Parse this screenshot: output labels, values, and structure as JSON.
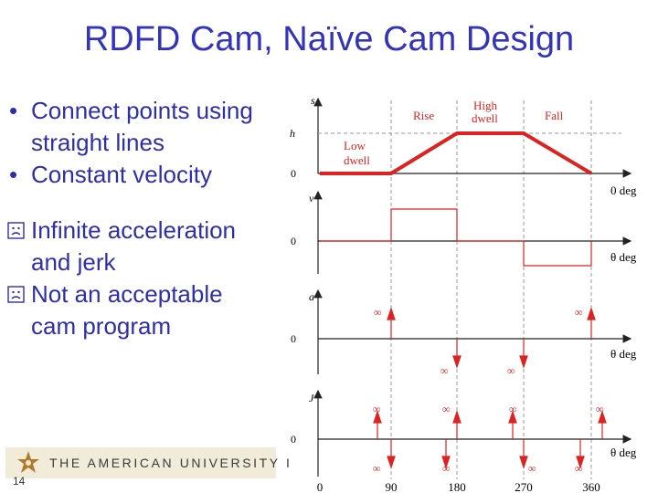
{
  "slide": {
    "title": "RDFD Cam, Naïve Cam Design",
    "page_number": "14"
  },
  "bullets": [
    {
      "type": "bullet",
      "text_line1": "Connect points using",
      "text_line2": "straight lines"
    },
    {
      "type": "bullet",
      "text_line1": "Constant velocity"
    },
    {
      "type": "frown",
      "text_line1": "Infinite acceleration",
      "text_line2": "and jerk"
    },
    {
      "type": "frown",
      "text_line1": "Not an acceptable",
      "text_line2": "cam program"
    }
  ],
  "logo": {
    "text": "THE AMERICAN UNIVERSITY I"
  },
  "diagram": {
    "colors": {
      "accent": "#dd2222",
      "axis": "#222222",
      "dash": "#999999"
    },
    "panels": [
      {
        "axis_label": "s",
        "h_label": "h",
        "zero_label": "0",
        "theta_label": "0  deg"
      },
      {
        "axis_label": "v",
        "zero_label": "0",
        "theta_label": "θ  deg"
      },
      {
        "axis_label": "a",
        "zero_label": "0",
        "theta_label": "θ  deg"
      },
      {
        "axis_label": "J",
        "zero_label": "0",
        "theta_label": "θ  deg"
      }
    ],
    "segment_labels": {
      "rise": "Rise",
      "high_dwell_line1": "High",
      "high_dwell_line2": "dwell",
      "fall": "Fall",
      "low_dwell_line1": "Low",
      "low_dwell_line2": "dwell"
    },
    "infinity": "∞",
    "x_ticks": [
      "0",
      "90",
      "180",
      "270",
      "360"
    ]
  }
}
